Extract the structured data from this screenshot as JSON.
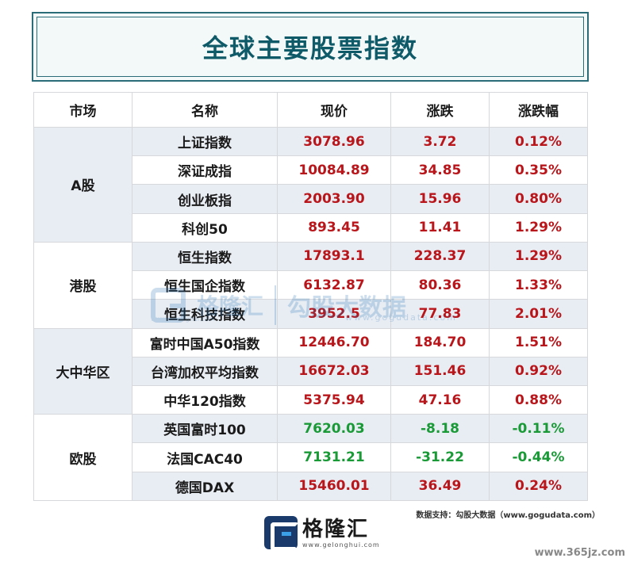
{
  "title": "全球主要股票指数",
  "headers": [
    "市场",
    "名称",
    "现价",
    "涨跌",
    "涨跌幅"
  ],
  "colors": {
    "up": "#b8161b",
    "down": "#1a9a37",
    "title": "#0f5a68",
    "shade": "#e8ecf3"
  },
  "groups": [
    {
      "market": "A股",
      "rows": [
        {
          "name": "上证指数",
          "price": "3078.96",
          "change": "3.72",
          "pct": "0.12%",
          "dir": "up"
        },
        {
          "name": "深证成指",
          "price": "10084.89",
          "change": "34.85",
          "pct": "0.35%",
          "dir": "up"
        },
        {
          "name": "创业板指",
          "price": "2003.90",
          "change": "15.96",
          "pct": "0.80%",
          "dir": "up"
        },
        {
          "name": "科创50",
          "price": "893.45",
          "change": "11.41",
          "pct": "1.29%",
          "dir": "up"
        }
      ]
    },
    {
      "market": "港股",
      "rows": [
        {
          "name": "恒生指数",
          "price": "17893.1",
          "change": "228.37",
          "pct": "1.29%",
          "dir": "up"
        },
        {
          "name": "恒生国企指数",
          "price": "6132.87",
          "change": "80.36",
          "pct": "1.33%",
          "dir": "up"
        },
        {
          "name": "恒生科技指数",
          "price": "3952.5",
          "change": "77.83",
          "pct": "2.01%",
          "dir": "up"
        }
      ]
    },
    {
      "market": "大中华区",
      "rows": [
        {
          "name": "富时中国A50指数",
          "price": "12446.70",
          "change": "184.70",
          "pct": "1.51%",
          "dir": "up"
        },
        {
          "name": "台湾加权平均指数",
          "price": "16672.03",
          "change": "151.46",
          "pct": "0.92%",
          "dir": "up"
        },
        {
          "name": "中华120指数",
          "price": "5375.94",
          "change": "47.16",
          "pct": "0.88%",
          "dir": "up"
        }
      ]
    },
    {
      "market": "欧股",
      "rows": [
        {
          "name": "英国富时100",
          "price": "7620.03",
          "change": "-8.18",
          "pct": "-0.11%",
          "dir": "down"
        },
        {
          "name": "法国CAC40",
          "price": "7131.21",
          "change": "-31.22",
          "pct": "-0.44%",
          "dir": "down"
        },
        {
          "name": "德国DAX",
          "price": "15460.01",
          "change": "36.49",
          "pct": "0.24%",
          "dir": "up"
        }
      ]
    }
  ],
  "source": "数据支持：勾股大数据（www.gogudata.com）",
  "watermark": {
    "brand": "格隆汇",
    "brand_url": "www.gelonghui.com",
    "partner": "勾股大数据",
    "partner_url": "www.gogudata.com"
  },
  "logo": {
    "text": "格隆汇",
    "url": "www.gelonghui.com"
  },
  "corner_mark": "www.365jz.com"
}
